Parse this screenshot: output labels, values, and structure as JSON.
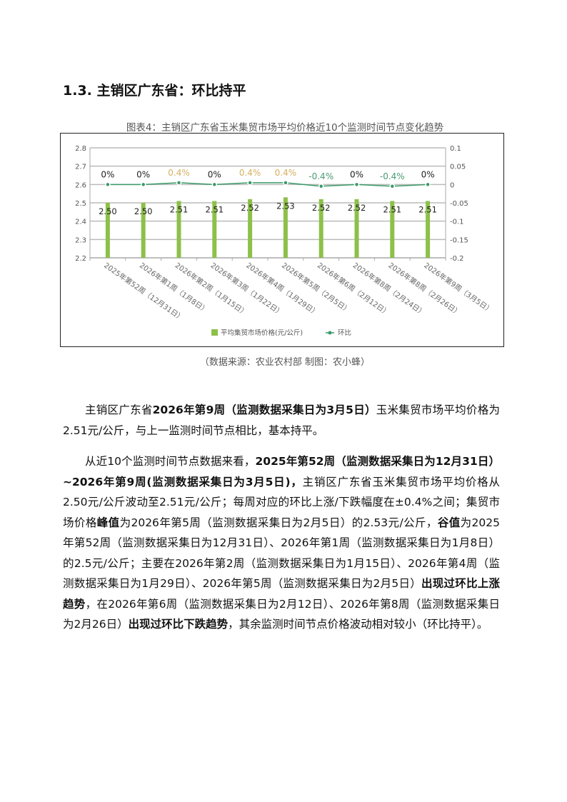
{
  "heading": "1.3.  主销区广东省：环比持平",
  "chart_title": "图表4：主销区广东省玉米集贸市场平均价格近10个监测时间节点变化趋势",
  "source": "（数据来源：农业农村部    制图：农小蜂）",
  "chart_data": {
    "type": "bar+line",
    "categories": [
      "2025年第52周（12月31日）",
      "2026年第1周（1月8日）",
      "2026年第2周（1月15日）",
      "2026年第3周（1月22日）",
      "2026年第4周（1月29日）",
      "2026年第5周（2月5日）",
      "2026年第6周（2月12日）",
      "2026年第8周（2月24日）",
      "2026年第8周（2月26日）",
      "2026年第9周（3月5日）"
    ],
    "series": [
      {
        "name": "平均集贸市场价格(元/公斤)",
        "type": "bar",
        "axis": "left",
        "color": "#8dc04a",
        "values": [
          2.5,
          2.5,
          2.51,
          2.51,
          2.52,
          2.53,
          2.52,
          2.52,
          2.51,
          2.51
        ],
        "labels": [
          "2.50",
          "2.50",
          "2.51",
          "2.51",
          "2.52",
          "2.53",
          "2.52",
          "2.52",
          "2.51",
          "2.51"
        ]
      },
      {
        "name": "环比",
        "type": "line",
        "axis": "right",
        "color": "#3a9a6a",
        "values": [
          0,
          0,
          0.004,
          0,
          0.004,
          0.004,
          -0.004,
          0,
          -0.004,
          0
        ],
        "labels": [
          "0%",
          "0%",
          "0.4%",
          "0%",
          "0.4%",
          "0.4%",
          "-0.4%",
          "0%",
          "-0.4%",
          "0%"
        ]
      }
    ],
    "left_axis": {
      "ylim": [
        2.2,
        2.8
      ],
      "ticks": [
        "2.2",
        "2.3",
        "2.4",
        "2.5",
        "2.6",
        "2.7",
        "2.8"
      ]
    },
    "right_axis": {
      "ylim": [
        -0.2,
        0.1
      ],
      "ticks": [
        "-0.2",
        "-0.15",
        "-0.1",
        "-0.05",
        "0",
        "0.05",
        "0.1"
      ]
    },
    "grid": true,
    "legend": "bottom",
    "label_colors": {
      "zero": "#222222",
      "up": "#d4b060",
      "down": "#4a9a70"
    }
  },
  "paragraphs": [
    [
      {
        "t": "主销区广东省"
      },
      {
        "t": "2026年第9周（监测数据采集日为3月5日）",
        "b": true
      },
      {
        "t": "玉米集贸市场平均价格为2.51元/公斤，与上一监测时间节点相比，基本持平。"
      }
    ],
    [
      {
        "t": "从近10个监测时间节点数据来看，"
      },
      {
        "t": "2025年第52周（监测数据采集日为12月31日）~2026年第9周(监测数据采集日为3月5日)，",
        "b": true
      },
      {
        "t": "主销区广东省玉米集贸市场平均价格从2.50元/公斤波动至2.51元/公斤；每周对应的环比上涨/下跌幅度在±0.4%之间；集贸市场价格"
      },
      {
        "t": "峰值",
        "b": true
      },
      {
        "t": "为2026年第5周（监测数据采集日为2月5日）的2.53元/公斤，"
      },
      {
        "t": "谷值",
        "b": true
      },
      {
        "t": "为2025年第52周（监测数据采集日为12月31日）、2026年第1周（监测数据采集日为1月8日）的2.5元/公斤；主要在2026年第2周（监测数据采集日为1月15日）、2026年第4周（监测数据采集日为1月29日）、2026年第5周（监测数据采集日为2月5日）"
      },
      {
        "t": "出现过环比上涨趋势",
        "b": true
      },
      {
        "t": "，在2026年第6周（监测数据采集日为2月12日）、2026年第8周（监测数据采集日为2月26日）"
      },
      {
        "t": "出现过环比下跌趋势",
        "b": true
      },
      {
        "t": "，其余监测时间节点价格波动相对较小（环比持平）。"
      }
    ]
  ]
}
